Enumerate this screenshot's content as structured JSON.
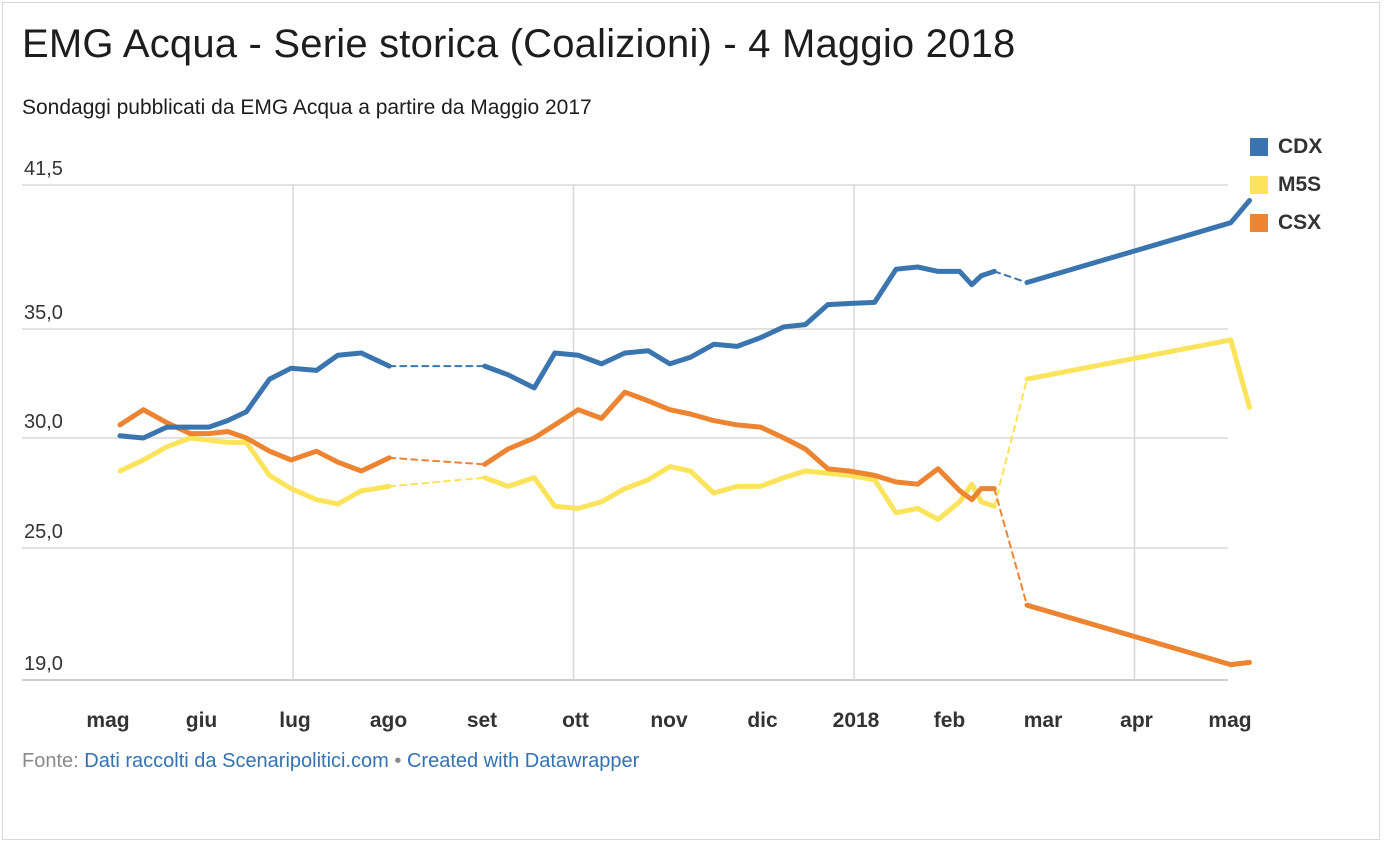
{
  "title": "EMG Acqua - Serie storica (Coalizioni) - 4 Maggio 2018",
  "subtitle": "Sondaggi pubblicati da EMG Acqua a partire da Maggio 2017",
  "footer": {
    "source_label": "Fonte:",
    "source_link": "Dati raccolti da Scenaripolitici.com",
    "separator": "•",
    "credit_link": "Created with Datawrapper"
  },
  "legend": [
    {
      "name": "CDX",
      "color": "#3a75b0"
    },
    {
      "name": "M5S",
      "color": "#fbe45b"
    },
    {
      "name": "CSX",
      "color": "#ec8431"
    }
  ],
  "chart_data": {
    "type": "line",
    "x_unit": "months since mag 2017",
    "xlim": [
      0,
      12.2
    ],
    "ylim": [
      19.0,
      41.5
    ],
    "y_ticks": [
      {
        "value": 41.5,
        "label": "41,5"
      },
      {
        "value": 35.0,
        "label": "35,0"
      },
      {
        "value": 30.0,
        "label": "30,0"
      },
      {
        "value": 25.0,
        "label": "25,0"
      },
      {
        "value": 19.0,
        "label": "19,0"
      }
    ],
    "x_ticks": [
      {
        "value": 0,
        "label": "mag"
      },
      {
        "value": 1,
        "label": "giu"
      },
      {
        "value": 2,
        "label": "lug"
      },
      {
        "value": 3,
        "label": "ago"
      },
      {
        "value": 4,
        "label": "set"
      },
      {
        "value": 5,
        "label": "ott"
      },
      {
        "value": 6,
        "label": "nov"
      },
      {
        "value": 7,
        "label": "dic"
      },
      {
        "value": 8,
        "label": "2018"
      },
      {
        "value": 9,
        "label": "feb"
      },
      {
        "value": 10,
        "label": "mar"
      },
      {
        "value": 11,
        "label": "apr"
      },
      {
        "value": 12,
        "label": "mag"
      }
    ],
    "grid_x": [
      2,
      5,
      8,
      11
    ],
    "grid": true,
    "legend_position": "top-right",
    "series": [
      {
        "name": "CDX",
        "color": "#3a75b0",
        "segments": [
          {
            "style": "solid",
            "points": [
              [
                0.15,
                30.1
              ],
              [
                0.4,
                30.0
              ],
              [
                0.65,
                30.5
              ],
              [
                0.9,
                30.5
              ],
              [
                1.1,
                30.5
              ],
              [
                1.3,
                30.8
              ],
              [
                1.5,
                31.2
              ],
              [
                1.75,
                32.7
              ],
              [
                1.98,
                33.2
              ],
              [
                2.25,
                33.1
              ],
              [
                2.48,
                33.8
              ],
              [
                2.73,
                33.9
              ],
              [
                3.03,
                33.3
              ]
            ]
          },
          {
            "style": "dashed",
            "points": [
              [
                3.03,
                33.3
              ],
              [
                4.05,
                33.3
              ]
            ]
          },
          {
            "style": "solid",
            "points": [
              [
                4.05,
                33.3
              ],
              [
                4.3,
                32.9
              ],
              [
                4.58,
                32.3
              ],
              [
                4.8,
                33.9
              ],
              [
                5.05,
                33.8
              ],
              [
                5.3,
                33.4
              ],
              [
                5.55,
                33.9
              ],
              [
                5.8,
                34.0
              ],
              [
                6.03,
                33.4
              ],
              [
                6.25,
                33.7
              ],
              [
                6.5,
                34.3
              ],
              [
                6.75,
                34.2
              ],
              [
                7.0,
                34.6
              ],
              [
                7.25,
                35.1
              ],
              [
                7.48,
                35.2
              ],
              [
                7.72,
                36.1
              ],
              [
                7.95,
                36.15
              ],
              [
                8.22,
                36.2
              ],
              [
                8.45,
                37.7
              ],
              [
                8.68,
                37.8
              ],
              [
                8.9,
                37.6
              ],
              [
                9.13,
                37.6
              ],
              [
                9.26,
                37.0
              ],
              [
                9.36,
                37.4
              ],
              [
                9.5,
                37.6
              ]
            ]
          },
          {
            "style": "dashed",
            "points": [
              [
                9.5,
                37.6
              ],
              [
                9.85,
                37.1
              ]
            ]
          },
          {
            "style": "solid",
            "points": [
              [
                9.85,
                37.1
              ],
              [
                12.03,
                39.8
              ],
              [
                12.23,
                40.8
              ]
            ]
          }
        ]
      },
      {
        "name": "M5S",
        "color": "#fbe45b",
        "segments": [
          {
            "style": "solid",
            "points": [
              [
                0.15,
                28.5
              ],
              [
                0.4,
                29.0
              ],
              [
                0.65,
                29.6
              ],
              [
                0.9,
                30.0
              ],
              [
                1.1,
                29.9
              ],
              [
                1.3,
                29.8
              ],
              [
                1.5,
                29.8
              ],
              [
                1.75,
                28.3
              ],
              [
                1.98,
                27.7
              ],
              [
                2.25,
                27.2
              ],
              [
                2.48,
                27.0
              ],
              [
                2.73,
                27.6
              ],
              [
                3.03,
                27.8
              ]
            ]
          },
          {
            "style": "dashed",
            "points": [
              [
                3.03,
                27.8
              ],
              [
                4.05,
                28.2
              ]
            ]
          },
          {
            "style": "solid",
            "points": [
              [
                4.05,
                28.2
              ],
              [
                4.3,
                27.8
              ],
              [
                4.58,
                28.2
              ],
              [
                4.8,
                26.9
              ],
              [
                5.05,
                26.8
              ],
              [
                5.3,
                27.1
              ],
              [
                5.55,
                27.7
              ],
              [
                5.8,
                28.1
              ],
              [
                6.03,
                28.7
              ],
              [
                6.25,
                28.5
              ],
              [
                6.5,
                27.5
              ],
              [
                6.75,
                27.8
              ],
              [
                7.0,
                27.8
              ],
              [
                7.25,
                28.2
              ],
              [
                7.48,
                28.5
              ],
              [
                7.72,
                28.4
              ],
              [
                7.95,
                28.3
              ],
              [
                8.22,
                28.1
              ],
              [
                8.45,
                26.6
              ],
              [
                8.68,
                26.8
              ],
              [
                8.9,
                26.3
              ],
              [
                9.13,
                27.1
              ],
              [
                9.26,
                27.9
              ],
              [
                9.36,
                27.1
              ],
              [
                9.5,
                26.9
              ]
            ]
          },
          {
            "style": "dashed",
            "points": [
              [
                9.5,
                26.9
              ],
              [
                9.85,
                32.7
              ]
            ]
          },
          {
            "style": "solid",
            "points": [
              [
                9.85,
                32.7
              ],
              [
                12.03,
                34.5
              ],
              [
                12.23,
                31.4
              ]
            ]
          }
        ]
      },
      {
        "name": "CSX",
        "color": "#ec8431",
        "segments": [
          {
            "style": "solid",
            "points": [
              [
                0.15,
                30.6
              ],
              [
                0.4,
                31.3
              ],
              [
                0.65,
                30.7
              ],
              [
                0.9,
                30.2
              ],
              [
                1.1,
                30.2
              ],
              [
                1.3,
                30.3
              ],
              [
                1.5,
                30.0
              ],
              [
                1.75,
                29.4
              ],
              [
                1.98,
                29.0
              ],
              [
                2.25,
                29.4
              ],
              [
                2.48,
                28.9
              ],
              [
                2.73,
                28.5
              ],
              [
                3.03,
                29.1
              ]
            ]
          },
          {
            "style": "dashed",
            "points": [
              [
                3.03,
                29.1
              ],
              [
                4.05,
                28.8
              ]
            ]
          },
          {
            "style": "solid",
            "points": [
              [
                4.05,
                28.8
              ],
              [
                4.3,
                29.5
              ],
              [
                4.58,
                30.0
              ],
              [
                4.8,
                30.6
              ],
              [
                5.05,
                31.3
              ],
              [
                5.3,
                30.9
              ],
              [
                5.55,
                32.1
              ],
              [
                5.8,
                31.7
              ],
              [
                6.03,
                31.3
              ],
              [
                6.25,
                31.1
              ],
              [
                6.5,
                30.8
              ],
              [
                6.75,
                30.6
              ],
              [
                7.0,
                30.5
              ],
              [
                7.25,
                30.0
              ],
              [
                7.48,
                29.5
              ],
              [
                7.72,
                28.6
              ],
              [
                7.95,
                28.5
              ],
              [
                8.22,
                28.3
              ],
              [
                8.45,
                28.0
              ],
              [
                8.68,
                27.9
              ],
              [
                8.9,
                28.6
              ],
              [
                9.13,
                27.6
              ],
              [
                9.26,
                27.2
              ],
              [
                9.36,
                27.7
              ],
              [
                9.5,
                27.7
              ]
            ]
          },
          {
            "style": "dashed",
            "points": [
              [
                9.5,
                27.7
              ],
              [
                9.85,
                22.4
              ]
            ]
          },
          {
            "style": "solid",
            "points": [
              [
                9.85,
                22.4
              ],
              [
                12.03,
                19.7
              ],
              [
                12.23,
                19.8
              ]
            ]
          }
        ]
      }
    ]
  }
}
